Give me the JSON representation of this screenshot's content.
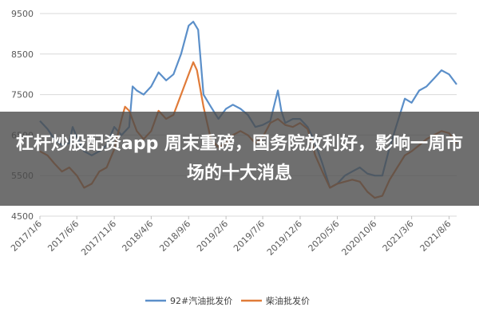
{
  "headline": "杠杆炒股配资app 周末重磅，国务院放利好，影响一周市场的十大消息",
  "chart_data": {
    "type": "line",
    "yticks": [
      4500,
      5500,
      6500,
      7500,
      8500,
      9500
    ],
    "ylim": [
      4500,
      9500
    ],
    "xlim": [
      "2017-01-06",
      "2021-09-06"
    ],
    "xticks": [
      "2017/1/6",
      "2017/6/6",
      "2017/11/6",
      "2018/4/6",
      "2018/9/6",
      "2019/2/6",
      "2019/7/6",
      "2019/12/6",
      "2020/5/6",
      "2020/10/6",
      "2021/3/6",
      "2021/8/6"
    ],
    "grid": "horizontal",
    "legend": "bottom-center",
    "series": [
      {
        "name": "92#汽油批发价",
        "color": "#5b8fc9",
        "points": [
          [
            "2017-01-06",
            6850
          ],
          [
            "2017-02-06",
            6650
          ],
          [
            "2017-03-06",
            6400
          ],
          [
            "2017-04-06",
            6250
          ],
          [
            "2017-05-06",
            6300
          ],
          [
            "2017-05-20",
            6700
          ],
          [
            "2017-06-06",
            6450
          ],
          [
            "2017-07-06",
            6100
          ],
          [
            "2017-08-06",
            6000
          ],
          [
            "2017-09-06",
            6100
          ],
          [
            "2017-10-06",
            6250
          ],
          [
            "2017-11-06",
            6700
          ],
          [
            "2017-12-06",
            6500
          ],
          [
            "2018-01-06",
            6700
          ],
          [
            "2018-01-20",
            7700
          ],
          [
            "2018-02-06",
            7600
          ],
          [
            "2018-03-06",
            7500
          ],
          [
            "2018-04-06",
            7700
          ],
          [
            "2018-05-06",
            8050
          ],
          [
            "2018-06-06",
            7850
          ],
          [
            "2018-07-06",
            8000
          ],
          [
            "2018-08-06",
            8500
          ],
          [
            "2018-09-06",
            9200
          ],
          [
            "2018-09-25",
            9300
          ],
          [
            "2018-10-15",
            9100
          ],
          [
            "2018-11-06",
            7500
          ],
          [
            "2018-12-06",
            7200
          ],
          [
            "2019-01-06",
            6900
          ],
          [
            "2019-02-06",
            7150
          ],
          [
            "2019-03-06",
            7250
          ],
          [
            "2019-04-06",
            7150
          ],
          [
            "2019-05-06",
            7000
          ],
          [
            "2019-06-06",
            6700
          ],
          [
            "2019-07-06",
            6750
          ],
          [
            "2019-08-06",
            6850
          ],
          [
            "2019-09-06",
            7600
          ],
          [
            "2019-09-20",
            7100
          ],
          [
            "2019-10-06",
            6800
          ],
          [
            "2019-11-06",
            6900
          ],
          [
            "2019-12-06",
            6900
          ],
          [
            "2020-01-06",
            6700
          ],
          [
            "2020-02-06",
            6300
          ],
          [
            "2020-03-06",
            5800
          ],
          [
            "2020-04-06",
            5200
          ],
          [
            "2020-05-06",
            5300
          ],
          [
            "2020-06-06",
            5500
          ],
          [
            "2020-07-06",
            5600
          ],
          [
            "2020-08-06",
            5700
          ],
          [
            "2020-09-06",
            5550
          ],
          [
            "2020-10-06",
            5500
          ],
          [
            "2020-11-06",
            5500
          ],
          [
            "2020-12-06",
            6200
          ],
          [
            "2021-01-06",
            6800
          ],
          [
            "2021-02-06",
            7400
          ],
          [
            "2021-03-06",
            7300
          ],
          [
            "2021-04-06",
            7600
          ],
          [
            "2021-05-06",
            7700
          ],
          [
            "2021-06-06",
            7900
          ],
          [
            "2021-07-06",
            8100
          ],
          [
            "2021-08-06",
            8000
          ],
          [
            "2021-09-06",
            7750
          ]
        ]
      },
      {
        "name": "柴油批发价",
        "color": "#e07b39",
        "points": [
          [
            "2017-01-06",
            6100
          ],
          [
            "2017-02-06",
            6000
          ],
          [
            "2017-03-06",
            5800
          ],
          [
            "2017-04-06",
            5600
          ],
          [
            "2017-05-06",
            5700
          ],
          [
            "2017-06-06",
            5500
          ],
          [
            "2017-07-06",
            5200
          ],
          [
            "2017-08-06",
            5300
          ],
          [
            "2017-09-06",
            5600
          ],
          [
            "2017-10-06",
            5700
          ],
          [
            "2017-11-06",
            6150
          ],
          [
            "2017-12-06",
            6900
          ],
          [
            "2017-12-20",
            7200
          ],
          [
            "2018-01-06",
            7100
          ],
          [
            "2018-02-06",
            6600
          ],
          [
            "2018-03-06",
            6400
          ],
          [
            "2018-04-06",
            6600
          ],
          [
            "2018-05-06",
            7100
          ],
          [
            "2018-06-06",
            6900
          ],
          [
            "2018-07-06",
            7000
          ],
          [
            "2018-08-06",
            7500
          ],
          [
            "2018-09-06",
            8000
          ],
          [
            "2018-09-25",
            8300
          ],
          [
            "2018-10-10",
            8100
          ],
          [
            "2018-11-06",
            7200
          ],
          [
            "2018-12-06",
            6400
          ],
          [
            "2019-01-06",
            6200
          ],
          [
            "2019-02-06",
            6300
          ],
          [
            "2019-03-06",
            6500
          ],
          [
            "2019-04-06",
            6600
          ],
          [
            "2019-05-06",
            6500
          ],
          [
            "2019-06-06",
            6300
          ],
          [
            "2019-07-06",
            6450
          ],
          [
            "2019-08-06",
            6800
          ],
          [
            "2019-09-06",
            6900
          ],
          [
            "2019-10-06",
            6750
          ],
          [
            "2019-11-06",
            6700
          ],
          [
            "2019-12-06",
            6800
          ],
          [
            "2020-01-06",
            6650
          ],
          [
            "2020-02-06",
            6000
          ],
          [
            "2020-03-06",
            5600
          ],
          [
            "2020-04-06",
            5200
          ],
          [
            "2020-05-06",
            5300
          ],
          [
            "2020-06-06",
            5350
          ],
          [
            "2020-07-06",
            5400
          ],
          [
            "2020-08-06",
            5350
          ],
          [
            "2020-09-06",
            5100
          ],
          [
            "2020-10-06",
            4950
          ],
          [
            "2020-11-06",
            5000
          ],
          [
            "2020-12-06",
            5400
          ],
          [
            "2021-01-06",
            5700
          ],
          [
            "2021-02-06",
            6000
          ],
          [
            "2021-03-06",
            6100
          ],
          [
            "2021-04-06",
            6250
          ],
          [
            "2021-05-06",
            6400
          ],
          [
            "2021-06-06",
            6500
          ],
          [
            "2021-07-06",
            6600
          ],
          [
            "2021-08-06",
            6550
          ],
          [
            "2021-09-06",
            6300
          ]
        ]
      }
    ]
  }
}
